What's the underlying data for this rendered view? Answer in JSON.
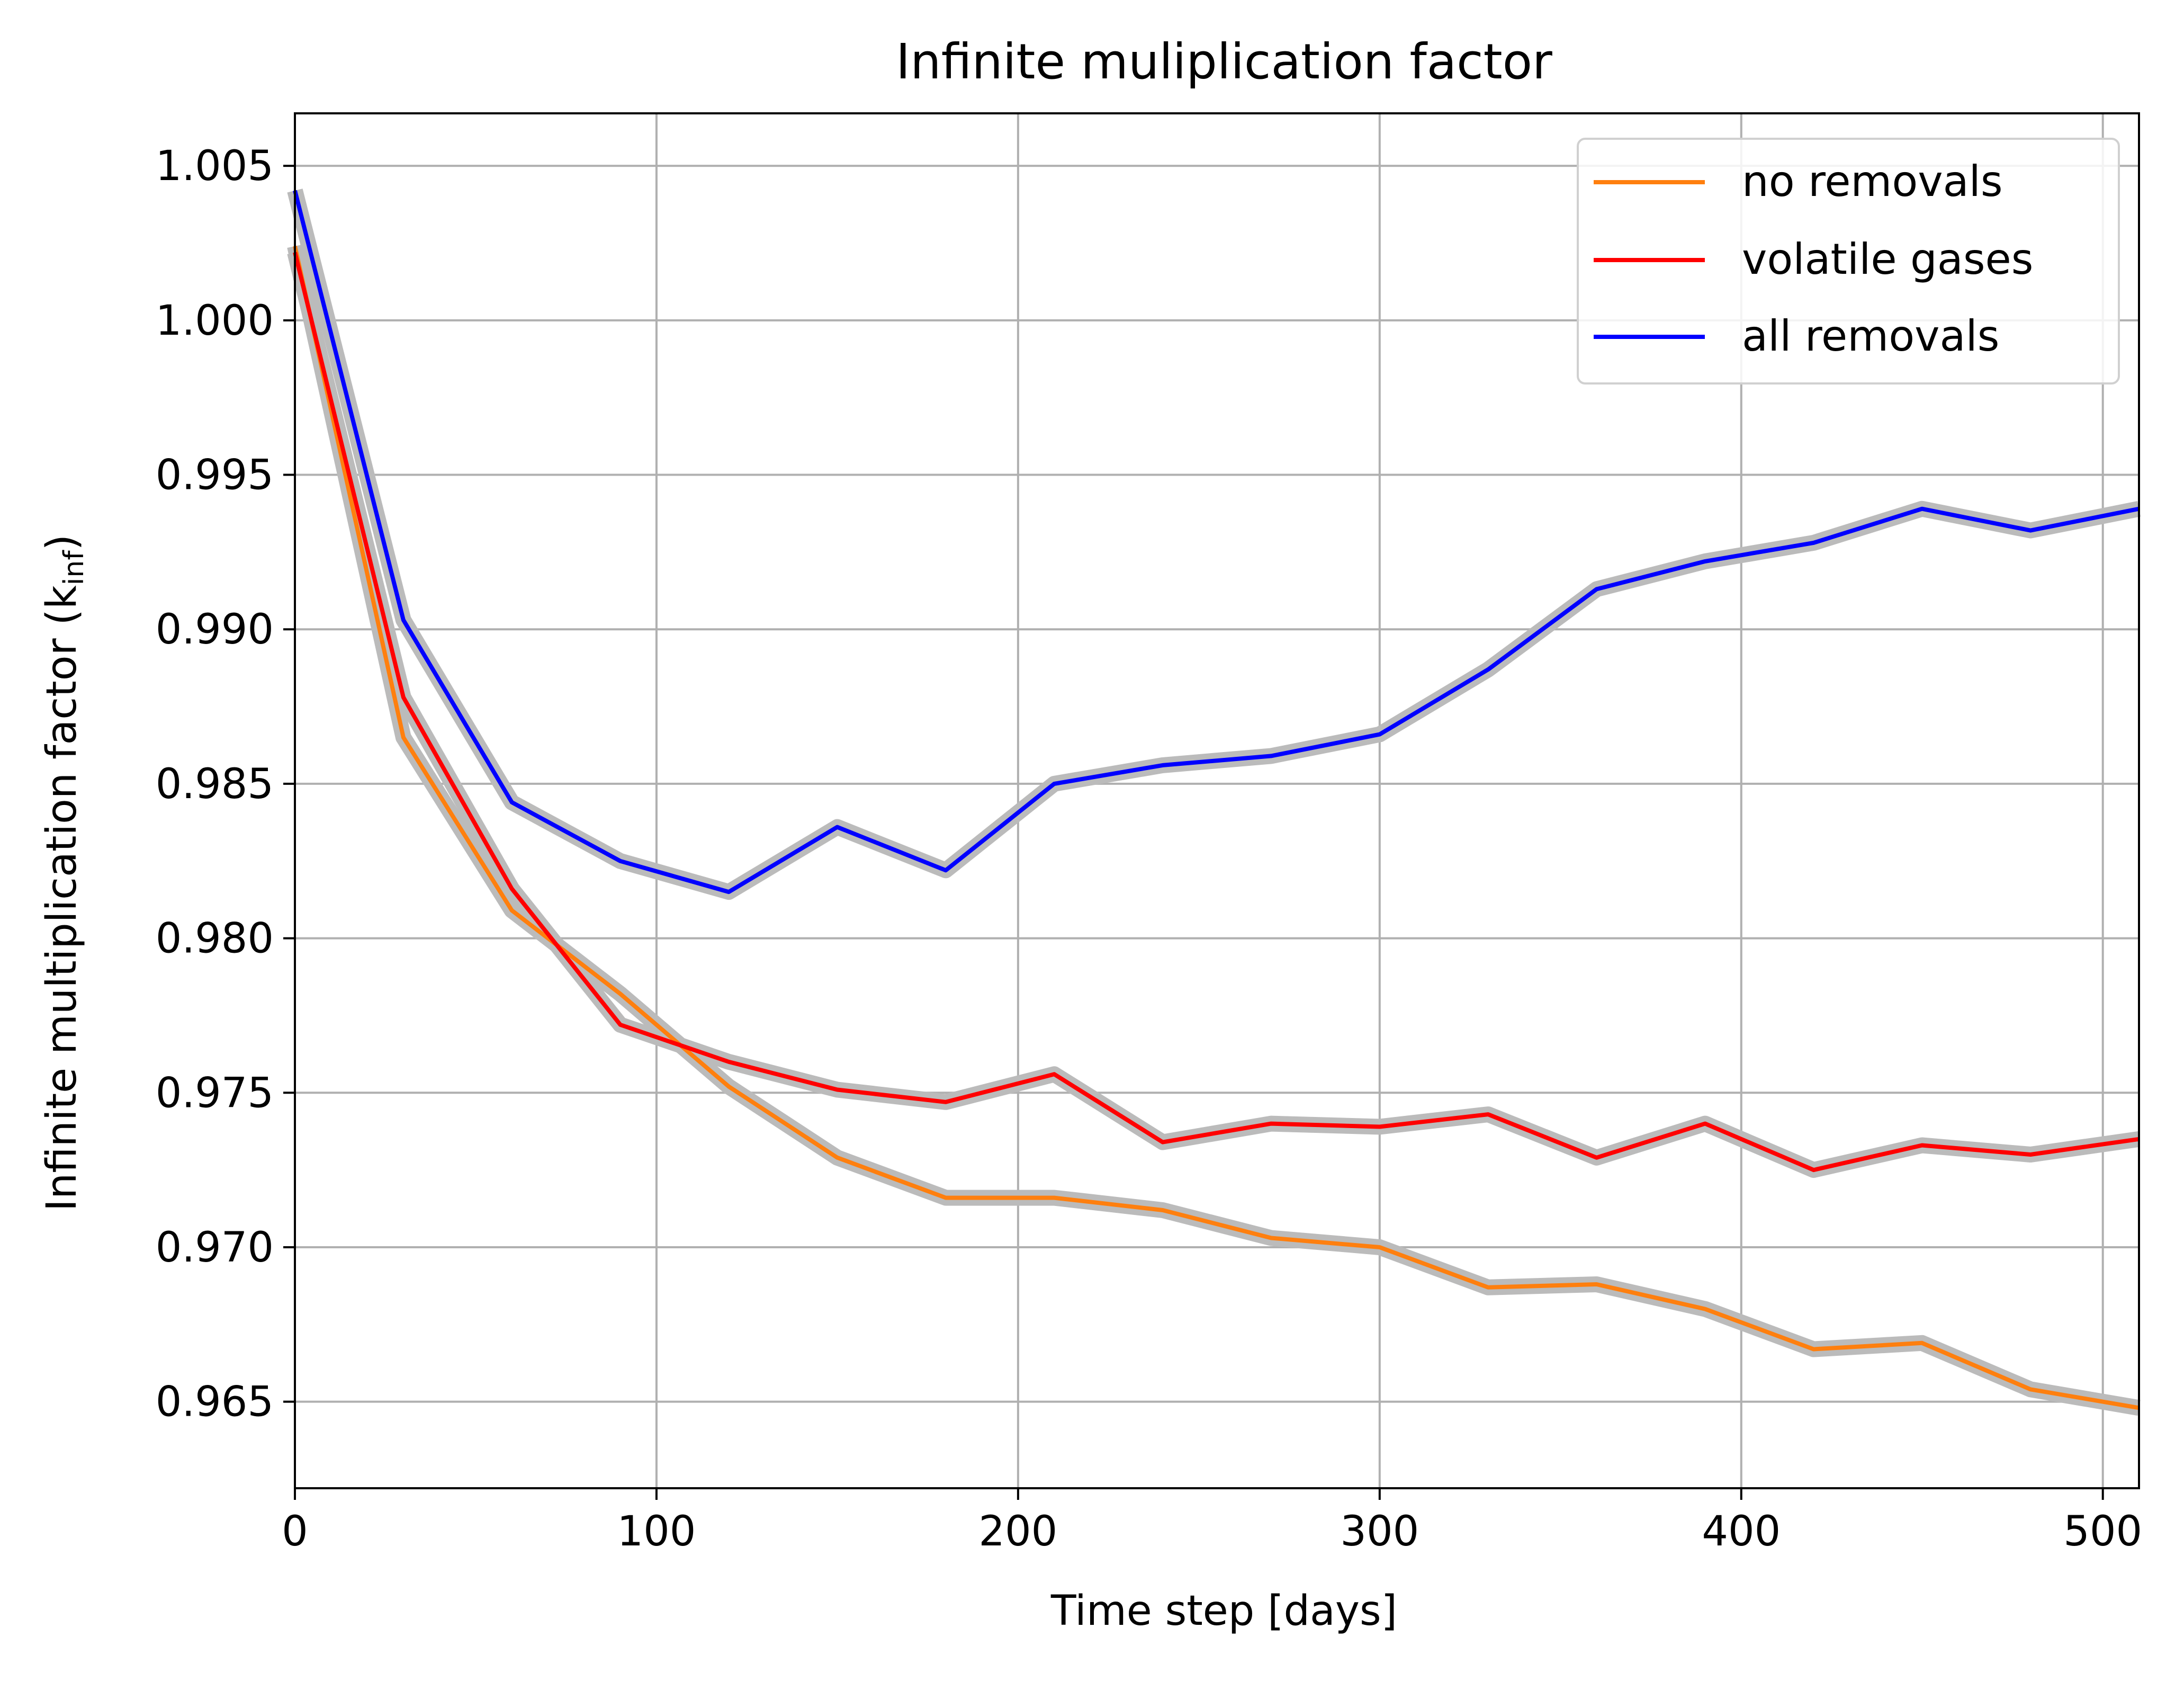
{
  "chart_data": {
    "type": "line",
    "title": "Infinite muliplication factor",
    "xlabel": "Time step [days]",
    "ylabel_main": "Infinite multiplication factor (k",
    "ylabel_sub": "inf",
    "ylabel_end": ")",
    "xlim": [
      0,
      510
    ],
    "ylim": [
      0.9622,
      1.0067
    ],
    "xticks": [
      0,
      100,
      200,
      300,
      400,
      500
    ],
    "yticks": [
      0.965,
      0.97,
      0.975,
      0.98,
      0.985,
      0.99,
      0.995,
      1.0,
      1.005
    ],
    "ytick_labels": [
      "0.965",
      "0.970",
      "0.975",
      "0.980",
      "0.985",
      "0.990",
      "0.995",
      "1.000",
      "1.005"
    ],
    "grid": true,
    "legend_position": "top-right",
    "uncertainty_band_color": "#bbbbbb",
    "x": [
      0,
      30,
      60,
      90,
      120,
      150,
      180,
      210,
      240,
      270,
      300,
      330,
      360,
      390,
      420,
      450,
      480,
      510
    ],
    "series": [
      {
        "name": "no removals",
        "color": "#ff7f0e",
        "values": [
          1.0024,
          0.9865,
          0.9809,
          0.9782,
          0.9752,
          0.9729,
          0.9716,
          0.9716,
          0.9712,
          0.9703,
          0.97,
          0.9687,
          0.9688,
          0.968,
          0.9667,
          0.9669,
          0.9654,
          0.9648
        ]
      },
      {
        "name": "volatile gases",
        "color": "#ff0000",
        "values": [
          1.0022,
          0.9878,
          0.9816,
          0.9772,
          0.976,
          0.9751,
          0.9747,
          0.9756,
          0.9734,
          0.974,
          0.9739,
          0.9743,
          0.9729,
          0.974,
          0.9725,
          0.9733,
          0.973,
          0.9735
        ]
      },
      {
        "name": "all removals",
        "color": "#0000ff",
        "values": [
          1.0042,
          0.9903,
          0.9844,
          0.9825,
          0.9815,
          0.9836,
          0.9822,
          0.985,
          0.9856,
          0.9859,
          0.9866,
          0.9887,
          0.9913,
          0.9922,
          0.9928,
          0.9939,
          0.9932,
          0.9939
        ]
      }
    ]
  }
}
